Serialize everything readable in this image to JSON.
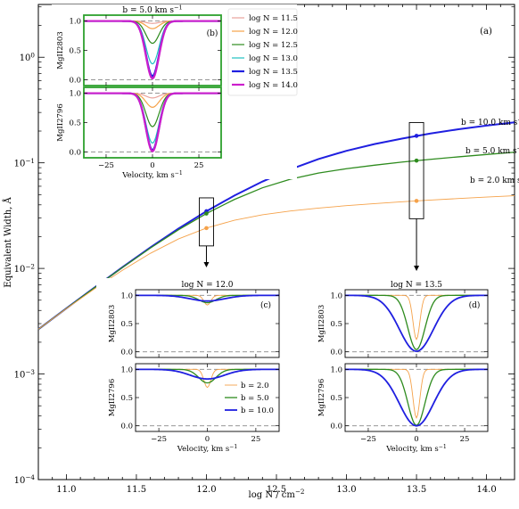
{
  "chart_data": [
    {
      "panel": "(a)",
      "type": "line",
      "xlabel": "log N / cm",
      "xlabel_sup": "−2",
      "ylabel": "Equivalent Width, Å",
      "xlim": [
        10.8,
        14.2
      ],
      "ylim_log10": [
        -4,
        0.5
      ],
      "yscale": "log",
      "xticks": [
        "11.0",
        "11.5",
        "12.0",
        "12.5",
        "13.0",
        "13.5",
        "14.0"
      ],
      "yticks": [
        {
          "base": "10",
          "exp": "0"
        },
        {
          "base": "10",
          "exp": "−1"
        },
        {
          "base": "10",
          "exp": "−2"
        },
        {
          "base": "10",
          "exp": "−3"
        },
        {
          "base": "10",
          "exp": "−4"
        }
      ],
      "x": [
        10.8,
        11.0,
        11.2,
        11.4,
        11.6,
        11.8,
        12.0,
        12.2,
        12.4,
        12.6,
        12.8,
        13.0,
        13.2,
        13.4,
        13.6,
        13.8,
        14.0,
        14.2
      ],
      "series": [
        {
          "name": "b = 10.0 km s",
          "name_sup": "−1",
          "color": "#1f1fe0",
          "y": [
            0.00265,
            0.00418,
            0.00657,
            0.01025,
            0.0158,
            0.0238,
            0.0348,
            0.049,
            0.0665,
            0.0868,
            0.1085,
            0.13,
            0.1505,
            0.17,
            0.1895,
            0.208,
            0.2255,
            0.242
          ]
        },
        {
          "name": "b = 5.0 km s",
          "name_sup": "−1",
          "color": "#2e8b1e",
          "y": [
            0.00265,
            0.00418,
            0.00655,
            0.0102,
            0.0156,
            0.0232,
            0.0331,
            0.045,
            0.058,
            0.07,
            0.08,
            0.088,
            0.095,
            0.1018,
            0.108,
            0.114,
            0.12,
            0.126
          ]
        },
        {
          "name": "b = 2.0 km s",
          "name_sup": "−1",
          "color": "#f5a24a",
          "y": [
            0.00265,
            0.00416,
            0.0064,
            0.0096,
            0.0139,
            0.019,
            0.0241,
            0.0286,
            0.0322,
            0.035,
            0.0373,
            0.0393,
            0.0411,
            0.0428,
            0.0444,
            0.0459,
            0.0474,
            0.0488
          ]
        }
      ],
      "markers": [
        {
          "x": 12.0,
          "ys": [
            0.0348,
            0.0331,
            0.0241
          ],
          "colors": [
            "#1f1fe0",
            "#2e8b1e",
            "#f5a24a"
          ]
        },
        {
          "x": 13.5,
          "ys": [
            0.18,
            0.105,
            0.0436
          ],
          "colors": [
            "#1f1fe0",
            "#2e8b1e",
            "#f5a24a"
          ]
        }
      ]
    },
    {
      "panel": "(b)",
      "type": "line",
      "title": "b = 5.0 km s",
      "title_sup": "−1",
      "subplots": [
        {
          "ylabel": "MgII2803"
        },
        {
          "ylabel": "MgII2796"
        }
      ],
      "xlabel": "Velocity, km s",
      "xlabel_sup": "−1",
      "xlim": [
        -37,
        37
      ],
      "ylim": [
        -0.1,
        1.1
      ],
      "xticks": [
        "−25",
        "0",
        "25"
      ],
      "yticks": [
        "0.0",
        "0.5",
        "1.0"
      ],
      "border_color": "#2ea12e",
      "legend": [
        {
          "label": "log N = 11.5",
          "color": "#e9a29b"
        },
        {
          "label": "log N = 12.0",
          "color": "#f5a24a"
        },
        {
          "label": "log N = 12.5",
          "color": "#2e8b1e"
        },
        {
          "label": "log N = 13.0",
          "color": "#1fc2c2"
        },
        {
          "label": "log N = 13.5",
          "color": "#1f1fe0"
        },
        {
          "label": "log N = 14.0",
          "color": "#cc1fcc"
        }
      ],
      "profile_width_kms": 5.0,
      "depths_2803": [
        0.04,
        0.13,
        0.38,
        0.73,
        0.94,
        0.98
      ],
      "depths_2796": [
        0.08,
        0.24,
        0.57,
        0.85,
        0.97,
        0.99
      ]
    },
    {
      "panel": "(c)",
      "type": "line",
      "title": "log N = 12.0",
      "subplots": [
        {
          "ylabel": "MgII2803"
        },
        {
          "ylabel": "MgII2796"
        }
      ],
      "xlabel": "Velocity, km s",
      "xlabel_sup": "−1",
      "xlim": [
        -37,
        37
      ],
      "ylim": [
        -0.1,
        1.1
      ],
      "xticks": [
        "−25",
        "0",
        "25"
      ],
      "yticks": [
        "0.0",
        "0.5",
        "1.0"
      ],
      "legend": [
        {
          "label": "b = 2.0",
          "color": "#f5a24a"
        },
        {
          "label": "b = 5.0",
          "color": "#2e8b1e"
        },
        {
          "label": "b = 10.0",
          "color": "#1f1fe0"
        }
      ],
      "widths_kms": [
        2.0,
        5.0,
        10.0
      ],
      "depths_2803": [
        0.17,
        0.13,
        0.1
      ],
      "depths_2796": [
        0.32,
        0.24,
        0.17
      ]
    },
    {
      "panel": "(d)",
      "type": "line",
      "title": "log N = 13.5",
      "subplots": [
        {
          "ylabel": "MgII2803"
        },
        {
          "ylabel": "MgII2796"
        }
      ],
      "xlabel": "Velocity, km s",
      "xlabel_sup": "−1",
      "xlim": [
        -37,
        37
      ],
      "ylim": [
        -0.1,
        1.1
      ],
      "xticks": [
        "−25",
        "0",
        "25"
      ],
      "yticks": [
        "0.0",
        "0.5",
        "1.0"
      ],
      "widths_kms": [
        2.0,
        5.0,
        10.0
      ],
      "depths_2803": [
        0.78,
        0.96,
        0.99
      ],
      "depths_2796": [
        0.86,
        0.99,
        1.0
      ]
    }
  ]
}
